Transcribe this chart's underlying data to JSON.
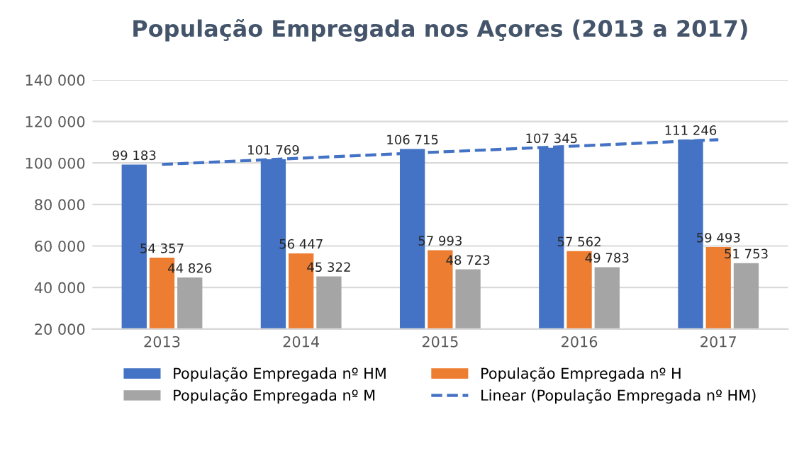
{
  "chart_data": {
    "type": "bar",
    "title": "População Empregada nos Açores (2013 a 2017)",
    "categories": [
      "2013",
      "2014",
      "2015",
      "2016",
      "2017"
    ],
    "series": [
      {
        "name": "População Empregada nº HM",
        "color": "#4472c4",
        "values": [
          99183,
          101769,
          106715,
          107345,
          111246
        ],
        "value_labels": [
          "99 183",
          "101 769",
          "106 715",
          "107 345",
          "111 246"
        ]
      },
      {
        "name": "População Empregada nº H",
        "color": "#ed7d31",
        "values": [
          54357,
          56447,
          57993,
          57562,
          59493
        ],
        "value_labels": [
          "54 357",
          "56 447",
          "57 993",
          "57 562",
          "59 493"
        ]
      },
      {
        "name": "População Empregada nº M",
        "color": "#a5a5a5",
        "values": [
          44826,
          45322,
          48723,
          49783,
          51753
        ],
        "value_labels": [
          "44 826",
          "45 322",
          "48 723",
          "49 783",
          "51 753"
        ]
      },
      {
        "name": "Linear (População Empregada nº HM)",
        "type": "line",
        "color": "#4472c4",
        "line_style": "dashed",
        "values": [
          99300,
          102300,
          105300,
          108200,
          111200
        ]
      }
    ],
    "ylim": [
      20000,
      140000
    ],
    "yticks": [
      {
        "value": 20000,
        "label": "20 000"
      },
      {
        "value": 40000,
        "label": "40 000"
      },
      {
        "value": 60000,
        "label": "60 000"
      },
      {
        "value": 80000,
        "label": "80 000"
      },
      {
        "value": 100000,
        "label": "100 000"
      },
      {
        "value": 120000,
        "label": "120 000"
      },
      {
        "value": 140000,
        "label": "140 000"
      }
    ],
    "grid": "y",
    "legend": "bottom"
  }
}
